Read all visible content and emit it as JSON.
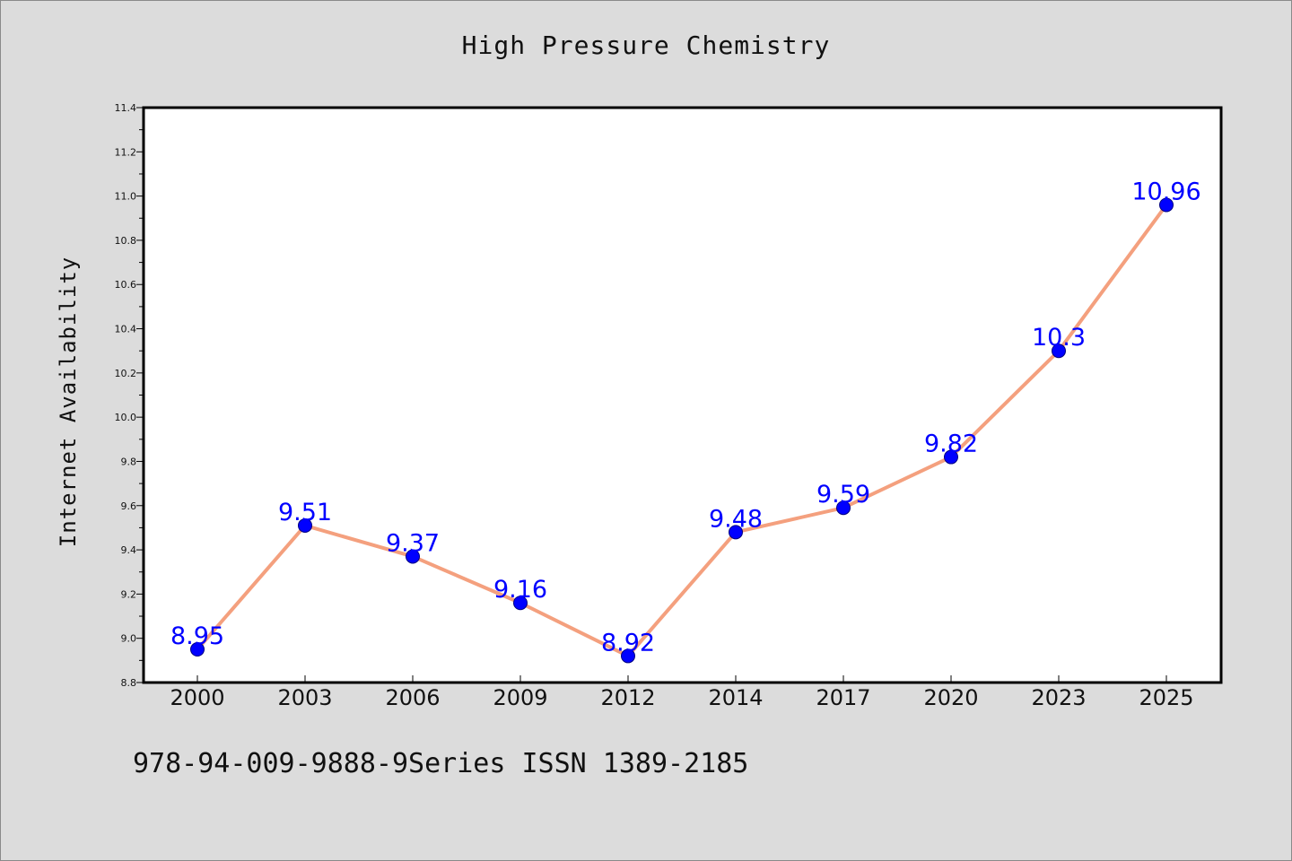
{
  "page": {
    "title": "High Pressure Chemistry",
    "footer": "978-94-009-9888-9Series ISSN 1389-2185"
  },
  "chart_data": {
    "type": "line",
    "title": "High Pressure Chemistry",
    "xlabel": "",
    "ylabel": "Internet Availability",
    "categories": [
      "2000",
      "2003",
      "2006",
      "2009",
      "2012",
      "2014",
      "2017",
      "2020",
      "2023",
      "2025"
    ],
    "series": [
      {
        "values": [
          8.95,
          9.51,
          9.37,
          9.16,
          8.92,
          9.48,
          9.59,
          9.82,
          10.3,
          10.96
        ],
        "data_labels": [
          "8.95",
          "9.51",
          "9.37",
          "9.16",
          "8.92",
          "9.48",
          "9.59",
          "9.82",
          "10.3",
          "10.96"
        ]
      }
    ],
    "ylim": [
      8.8,
      11.4
    ],
    "y_ticks": [
      "8.8",
      "9.0",
      "9.2",
      "9.4",
      "9.6",
      "9.8",
      "10.0",
      "10.2",
      "10.4",
      "10.6",
      "10.8",
      "11.0",
      "11.2",
      "11.4"
    ],
    "grid": false,
    "legend": "none",
    "colors": {
      "line": "#f4a07e",
      "marker_fill": "#0000ff",
      "marker_edge": "#000080",
      "data_label": "#0000ff",
      "plot_background": "#ffffff",
      "page_background": "#dcdcdc"
    }
  }
}
